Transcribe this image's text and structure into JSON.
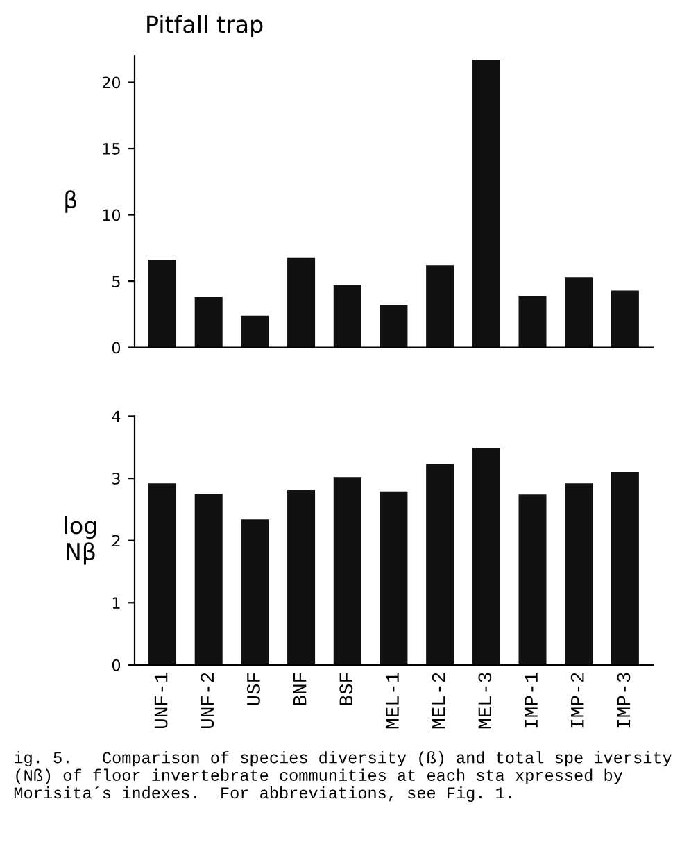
{
  "chart_data": [
    {
      "type": "bar",
      "title": "Pitfall trap",
      "ylabel": "β",
      "categories": [
        null,
        null,
        null,
        null,
        null,
        null,
        null,
        null,
        null,
        null,
        null
      ],
      "values": [
        6.6,
        3.8,
        2.4,
        6.8,
        4.7,
        3.2,
        6.2,
        21.7,
        3.9,
        5.3,
        4.3
      ],
      "color": "#111111",
      "ylim": [
        0,
        22
      ],
      "yticks": [
        0,
        5,
        10,
        15,
        20
      ],
      "tick_labels": "y",
      "grid": false,
      "legend": false
    },
    {
      "type": "bar",
      "ylabel": "log\nNβ",
      "categories": [
        "UNF-1",
        "UNF-2",
        "USF",
        "BNF",
        "BSF",
        "MEL-1",
        "MEL-2",
        "MEL-3",
        "IMP-1",
        "IMP-2",
        "IMP-3"
      ],
      "values": [
        2.92,
        2.75,
        2.34,
        2.81,
        3.02,
        2.78,
        3.23,
        3.48,
        2.74,
        2.92,
        3.1
      ],
      "color": "#111111",
      "ylim": [
        0,
        4
      ],
      "yticks": [
        0,
        1,
        2,
        3,
        4
      ],
      "grid": false,
      "legend": false,
      "annotations": [
        "ig. 5.   Comparison of species diversity (ß) and total spe iversity (Nß) of floor invertebrate communities at each sta xpressed by Morisita´s indexes.  For abbreviations, see Fig. 1."
      ]
    }
  ]
}
